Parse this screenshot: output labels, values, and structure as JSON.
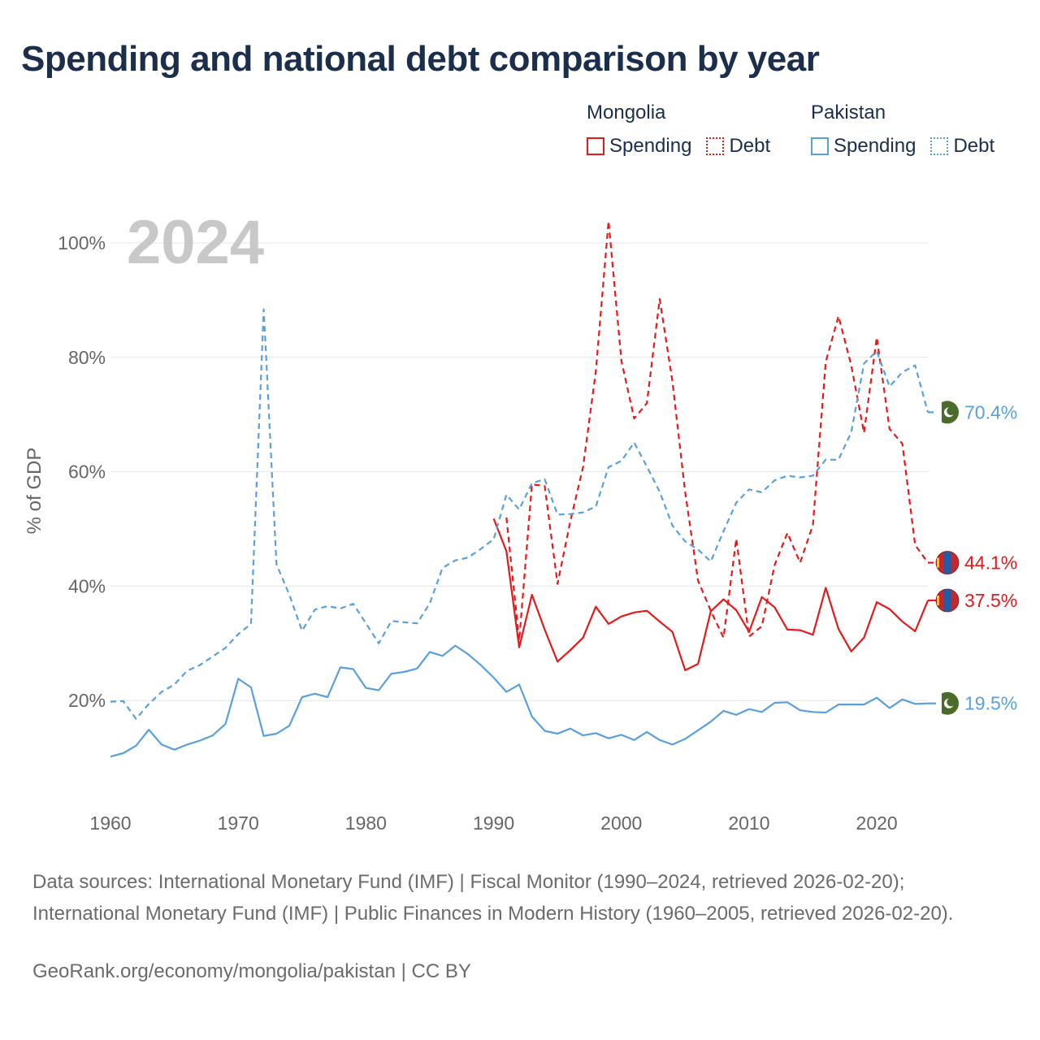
{
  "title": "Spending and national debt comparison by year",
  "colors": {
    "mongolia": "#e41a1c",
    "pakistan": "#5aa0dc",
    "grid": "#e6e6e6",
    "year_watermark": "#c8c8c8",
    "pk_flag": "#4a6b2a"
  },
  "legend": {
    "groups": [
      {
        "name": "Mongolia",
        "items": [
          {
            "label": "Spending",
            "style": "solid"
          },
          {
            "label": "Debt",
            "style": "dotted"
          }
        ]
      },
      {
        "name": "Pakistan",
        "items": [
          {
            "label": "Spending",
            "style": "solid"
          },
          {
            "label": "Debt",
            "style": "dotted"
          }
        ]
      }
    ]
  },
  "chart_data": {
    "type": "line",
    "year_label": "2024",
    "ylabel": "% of GDP",
    "xlabel": "",
    "xlim": [
      1960,
      2024
    ],
    "ylim": [
      0,
      100
    ],
    "x_ticks": [
      1960,
      1970,
      1980,
      1990,
      2000,
      2010,
      2020
    ],
    "y_ticks": [
      {
        "value": 20,
        "label": "20%"
      },
      {
        "value": 40,
        "label": "40%"
      },
      {
        "value": 60,
        "label": "60%"
      },
      {
        "value": 80,
        "label": "80%"
      },
      {
        "value": 100,
        "label": "100%"
      }
    ],
    "series": [
      {
        "name": "Mongolia Spending",
        "country": "Mongolia",
        "measure": "Spending",
        "style": "solid",
        "end_label": "37.5%",
        "x": [
          1990,
          1991,
          1992,
          1993,
          1994,
          1995,
          1996,
          1997,
          1998,
          1999,
          2000,
          2001,
          2002,
          2003,
          2004,
          2005,
          2006,
          2007,
          2008,
          2009,
          2010,
          2011,
          2012,
          2013,
          2014,
          2015,
          2016,
          2017,
          2018,
          2019,
          2020,
          2021,
          2022,
          2023,
          2024
        ],
        "values": [
          51.8,
          46.1,
          29.3,
          38.5,
          32.4,
          26.8,
          28.8,
          31.0,
          36.4,
          33.4,
          34.7,
          35.4,
          35.7,
          33.8,
          32.0,
          25.3,
          26.4,
          35.6,
          37.7,
          35.8,
          32.0,
          38.1,
          36.3,
          32.4,
          32.3,
          31.5,
          39.7,
          32.5,
          28.6,
          31.0,
          37.2,
          36.0,
          33.8,
          32.1,
          37.5
        ]
      },
      {
        "name": "Mongolia Debt",
        "country": "Mongolia",
        "measure": "Debt",
        "style": "dotted",
        "end_label": "44.1%",
        "x": [
          1991,
          1992,
          1993,
          1994,
          1995,
          1996,
          1997,
          1998,
          1999,
          2000,
          2001,
          2002,
          2003,
          2004,
          2005,
          2006,
          2007,
          2008,
          2009,
          2010,
          2011,
          2012,
          2013,
          2014,
          2015,
          2016,
          2017,
          2018,
          2019,
          2020,
          2021,
          2022,
          2023,
          2024
        ],
        "values": [
          52.0,
          30.5,
          57.8,
          57.5,
          40.4,
          51.3,
          60.8,
          77.5,
          103.8,
          79.4,
          69.3,
          72.0,
          90.2,
          75.8,
          56.4,
          41.0,
          35.7,
          31.0,
          48.3,
          31.2,
          33.0,
          43.7,
          49.3,
          44.1,
          50.7,
          79.2,
          87.2,
          78.6,
          66.8,
          83.5,
          67.5,
          64.9,
          47.2,
          44.1
        ]
      },
      {
        "name": "Pakistan Spending",
        "country": "Pakistan",
        "measure": "Spending",
        "style": "solid",
        "end_label": "19.5%",
        "x": [
          1960,
          1961,
          1962,
          1963,
          1964,
          1965,
          1966,
          1967,
          1968,
          1969,
          1970,
          1971,
          1972,
          1973,
          1974,
          1975,
          1976,
          1977,
          1978,
          1979,
          1980,
          1981,
          1982,
          1983,
          1984,
          1985,
          1986,
          1987,
          1988,
          1989,
          1990,
          1991,
          1992,
          1993,
          1994,
          1995,
          1996,
          1997,
          1998,
          1999,
          2000,
          2001,
          2002,
          2003,
          2004,
          2005,
          2006,
          2007,
          2008,
          2009,
          2010,
          2011,
          2012,
          2013,
          2014,
          2015,
          2016,
          2017,
          2018,
          2019,
          2020,
          2021,
          2022,
          2023,
          2024
        ],
        "values": [
          10.2,
          10.8,
          12.1,
          14.9,
          12.3,
          11.4,
          12.3,
          13.0,
          13.9,
          15.9,
          23.8,
          22.3,
          13.8,
          14.2,
          15.6,
          20.6,
          21.2,
          20.6,
          25.8,
          25.5,
          22.2,
          21.8,
          24.7,
          25.0,
          25.6,
          28.5,
          27.8,
          29.6,
          28.1,
          26.2,
          24.0,
          21.5,
          22.8,
          17.2,
          14.7,
          14.2,
          15.1,
          13.9,
          14.3,
          13.4,
          14.0,
          13.1,
          14.5,
          13.1,
          12.3,
          13.3,
          14.8,
          16.3,
          18.2,
          17.5,
          18.5,
          18.0,
          19.6,
          19.7,
          18.3,
          18.0,
          17.9,
          19.3,
          19.3,
          19.3,
          20.5,
          18.7,
          20.2,
          19.4,
          19.5
        ]
      },
      {
        "name": "Pakistan Debt",
        "country": "Pakistan",
        "measure": "Debt",
        "style": "dotted",
        "end_label": "70.4%",
        "x": [
          1960,
          1961,
          1962,
          1963,
          1964,
          1965,
          1966,
          1967,
          1968,
          1969,
          1970,
          1971,
          1972,
          1973,
          1974,
          1975,
          1976,
          1977,
          1978,
          1979,
          1980,
          1981,
          1982,
          1983,
          1984,
          1985,
          1986,
          1987,
          1988,
          1989,
          1990,
          1991,
          1992,
          1993,
          1994,
          1995,
          1996,
          1997,
          1998,
          1999,
          2000,
          2001,
          2002,
          2003,
          2004,
          2005,
          2006,
          2007,
          2008,
          2009,
          2010,
          2011,
          2012,
          2013,
          2014,
          2015,
          2016,
          2017,
          2018,
          2019,
          2020,
          2021,
          2022,
          2023,
          2024
        ],
        "values": [
          19.8,
          19.9,
          16.8,
          19.4,
          21.5,
          22.8,
          25.2,
          26.2,
          27.7,
          29.2,
          31.6,
          33.4,
          88.4,
          43.8,
          38.5,
          32.2,
          35.9,
          36.5,
          36.1,
          36.9,
          33.5,
          30.0,
          33.9,
          33.7,
          33.5,
          37.0,
          43.2,
          44.5,
          45.0,
          46.5,
          48.2,
          56.0,
          53.4,
          58.0,
          58.7,
          52.5,
          52.6,
          52.9,
          53.9,
          60.8,
          61.9,
          65.1,
          60.9,
          56.5,
          50.6,
          47.8,
          46.4,
          44.3,
          49.6,
          54.6,
          56.9,
          56.4,
          58.5,
          59.3,
          59.0,
          59.3,
          62.1,
          62.1,
          66.9,
          78.9,
          81.1,
          74.9,
          77.4,
          78.6,
          70.4
        ]
      }
    ]
  },
  "sources": {
    "text": "Data sources: International Monetary Fund (IMF) | Fiscal Monitor (1990–2024, retrieved 2026-02-20); International Monetary Fund (IMF) | Public Finances in Modern History (1960–2005, retrieved 2026-02-20).",
    "credit": "GeoRank.org/economy/mongolia/pakistan | CC BY"
  }
}
